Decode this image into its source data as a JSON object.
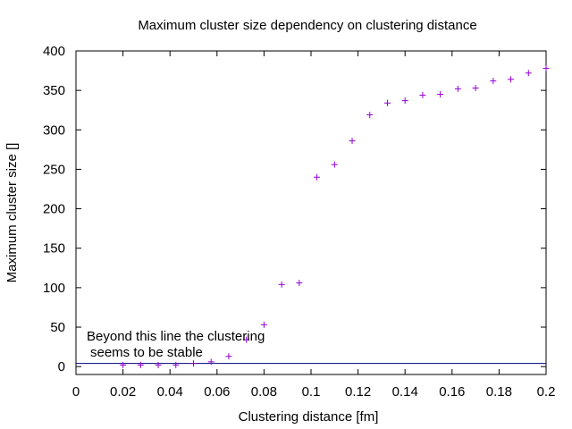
{
  "chart_data": {
    "type": "scatter",
    "title": "Maximum cluster size dependency on clustering distance",
    "xlabel": "Clustering distance [fm]",
    "ylabel": "Maximum cluster size []",
    "xlim": [
      0,
      0.2
    ],
    "ylim": [
      -10,
      400
    ],
    "x_ticks": [
      "0",
      "0.02",
      "0.04",
      "0.06",
      "0.08",
      "0.1",
      "0.12",
      "0.14",
      "0.16",
      "0.18",
      "0.2"
    ],
    "y_ticks": [
      "0",
      "50",
      "100",
      "150",
      "200",
      "250",
      "300",
      "350",
      "400"
    ],
    "grid": false,
    "marker": "+",
    "point_color": "#9400d3",
    "line_color": "#000080",
    "series": [
      {
        "x": [
          0.02,
          0.0275,
          0.035,
          0.0425,
          0.05,
          0.0575,
          0.065,
          0.0725,
          0.08,
          0.0875,
          0.095,
          0.1025,
          0.11,
          0.1175,
          0.125,
          0.1325,
          0.14,
          0.1475,
          0.155,
          0.1625,
          0.17,
          0.1775,
          0.185,
          0.1925,
          0.2
        ],
        "y": [
          2,
          2,
          2,
          2,
          4,
          6,
          13,
          34,
          53,
          104,
          106,
          240,
          256,
          286,
          319,
          334,
          337,
          344,
          345,
          352,
          353,
          362,
          364,
          372,
          378
        ]
      }
    ],
    "threshold": {
      "y": 4
    },
    "annotation": {
      "line1": "Beyond this line the clustering",
      "line2": "seems to be stable"
    }
  }
}
